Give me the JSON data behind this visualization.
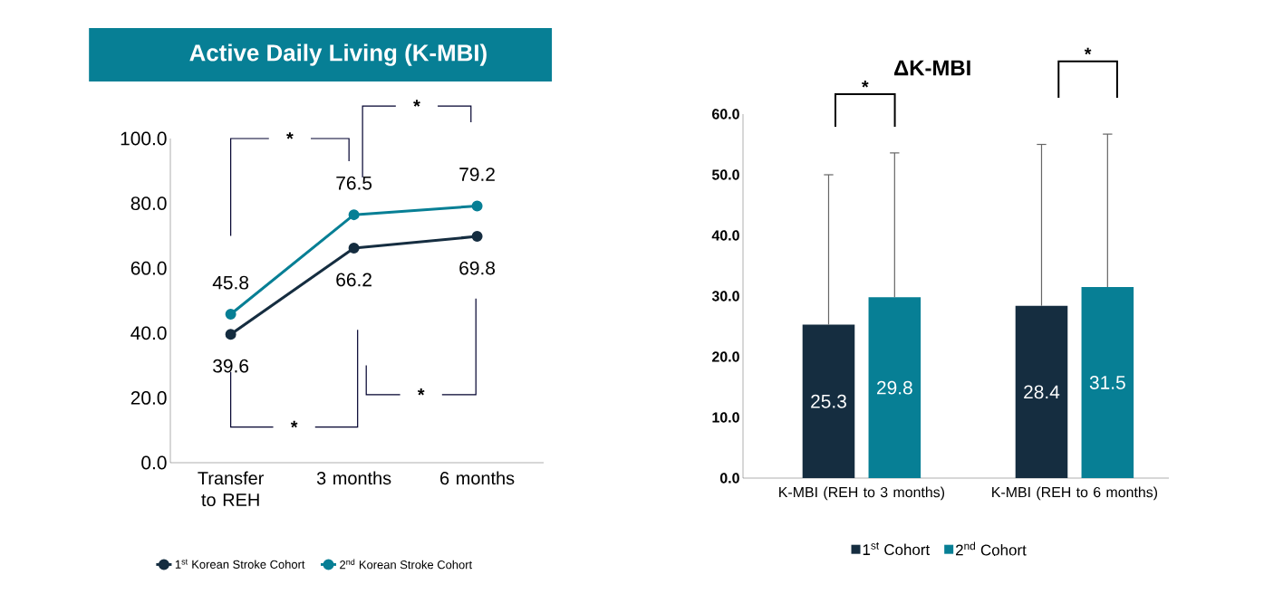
{
  "chart_data": [
    {
      "type": "line",
      "title": "Active Daily Living (K-MBI)",
      "categories": [
        "Transfer to REH",
        "3 months",
        "6 months"
      ],
      "series": [
        {
          "name": "1$^{st}$ Korean Stroke Cohort",
          "color": "#152d40",
          "values": [
            39.6,
            66.2,
            69.8
          ]
        },
        {
          "name": "2$^{nd}$ Korean Stroke Cohort",
          "color": "#077f95",
          "values": [
            45.8,
            76.5,
            79.2
          ]
        }
      ],
      "ylim": [
        0,
        100
      ],
      "yticks": [
        {
          "value": 0,
          "label": "0.0"
        },
        {
          "value": 20,
          "label": "20.0"
        },
        {
          "value": 40,
          "label": "40.0"
        },
        {
          "value": 60,
          "label": "60.0"
        },
        {
          "value": 80,
          "label": "80.0"
        },
        {
          "value": 100,
          "label": "100.0"
        }
      ],
      "data_labels": true,
      "legend": "bottom",
      "marker": "circle",
      "line_style": "solid",
      "annotations": [
        "*",
        "*",
        "*",
        "*"
      ]
    },
    {
      "type": "bar",
      "title": "ΔK-MBI",
      "categories": [
        "K-MBI (REH to 3 months)",
        "K-MBI (REH to 6 months)"
      ],
      "series": [
        {
          "name": "1$^{st}$ Cohort",
          "color": "#152d40",
          "values": [
            25.3,
            28.4
          ],
          "errors": [
            [
              25.3,
              50.0
            ],
            [
              28.4,
              55.0
            ]
          ]
        },
        {
          "name": "2$^{nd}$ Cohort",
          "color": "#077f95",
          "values": [
            29.8,
            31.5
          ],
          "errors": [
            [
              29.8,
              53.6
            ],
            [
              31.5,
              56.7
            ]
          ]
        }
      ],
      "ylim": [
        0,
        60
      ],
      "yticks": [
        {
          "value": 0,
          "label": "0.0"
        },
        {
          "value": 10,
          "label": "10.0"
        },
        {
          "value": 20,
          "label": "20.0"
        },
        {
          "value": 30,
          "label": "30.0"
        },
        {
          "value": 40,
          "label": "40.0"
        },
        {
          "value": 50,
          "label": "50.0"
        },
        {
          "value": 60,
          "label": "60.0"
        }
      ],
      "data_labels": true,
      "legend": "bottom",
      "annotations": [
        "*",
        "*"
      ]
    }
  ]
}
